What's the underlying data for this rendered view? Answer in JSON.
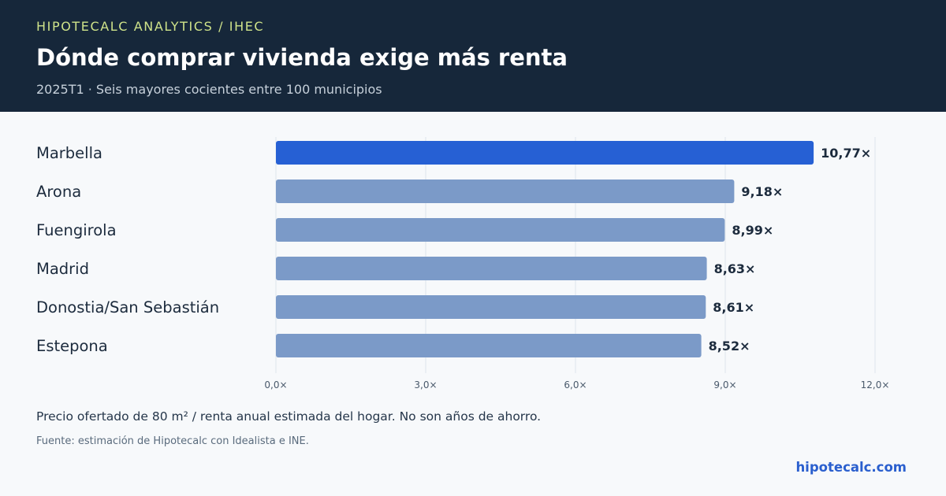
{
  "header": {
    "kicker": "HIPOTECALC ANALYTICS / IHEC",
    "title": "Dónde comprar vivienda exige más renta",
    "subtitle": "2025T1 · Seis mayores cocientes entre 100 municipios"
  },
  "chart_data": {
    "type": "bar",
    "orientation": "horizontal",
    "categories": [
      "Marbella",
      "Arona",
      "Fuengirola",
      "Madrid",
      "Donostia/San Sebastián",
      "Estepona"
    ],
    "values": [
      10.77,
      9.18,
      8.99,
      8.63,
      8.61,
      8.52
    ],
    "value_labels": [
      "10,77×",
      "9,18×",
      "8,99×",
      "8,63×",
      "8,61×",
      "8,52×"
    ],
    "highlight_index": 0,
    "xlim": [
      0,
      12
    ],
    "xticks": [
      0,
      3,
      6,
      9,
      12
    ],
    "xtick_labels": [
      "0,0×",
      "3,0×",
      "6,0×",
      "9,0×",
      "12,0×"
    ],
    "grid": true,
    "colors": {
      "highlight": "#2660d4",
      "bar": "#7b9ac8",
      "grid": "#e3e8ee"
    }
  },
  "footer": {
    "note": "Precio ofertado de 80 m² / renta anual estimada del hogar. No son años de ahorro.",
    "source": "Fuente: estimación de Hipotecalc con Idealista e INE.",
    "brand": "hipotecalc.com"
  }
}
